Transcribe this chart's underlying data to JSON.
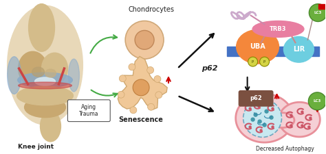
{
  "fig_width": 4.74,
  "fig_height": 2.25,
  "dpi": 100,
  "bg_color": "#ffffff",
  "title_chondrocytes": "Chondrocytes",
  "title_senescence": "Senescence",
  "title_knee": "Knee joint",
  "title_aging": "Aging\nTrauma",
  "title_p62_top": "p62",
  "title_uba": "UBA",
  "title_lir": "LIR",
  "title_trb3": "TRB3",
  "title_lc3_top": "LC3",
  "title_p62_bot": "p62",
  "title_lc3_bot": "LC3",
  "title_decreased": "Decreased Autophagy",
  "color_orange": "#F4873B",
  "color_cyan": "#6DCEE0",
  "color_pink": "#E87EA1",
  "color_blue_bar": "#4472C4",
  "color_green_lc3": "#6AAF3D",
  "color_yellow_p": "#D4D444",
  "color_brown_p62": "#7B5040",
  "color_cell_outer": "#E8909A",
  "color_cell_inner": "#F5D0D5",
  "color_nucleus": "#C8E8F0",
  "color_red_arrow": "#CC0000",
  "color_bone": "#D4BC8A",
  "color_bone2": "#C8A870",
  "color_cartilage": "#8AAAC8",
  "color_red_tissue": "#CC4444"
}
